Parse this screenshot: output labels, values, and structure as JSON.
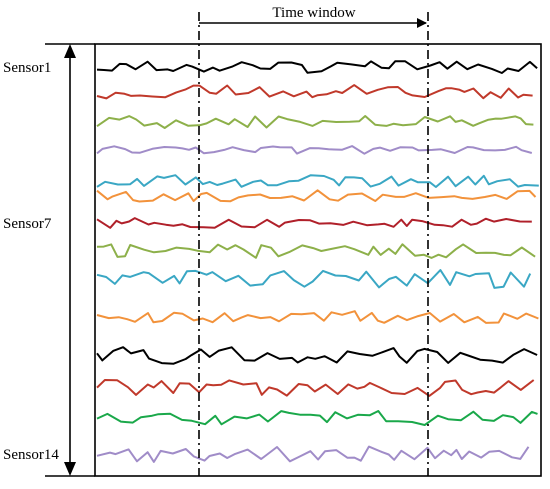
{
  "chart_data": {
    "type": "line",
    "title": "",
    "xlabel": "",
    "ylabel": "",
    "annotation": "Time window",
    "row_labels": [
      {
        "row": 1,
        "text": "Sensor1"
      },
      {
        "row": 7,
        "text": "Sensor7"
      },
      {
        "row": 14,
        "text": "Sensor14"
      }
    ],
    "series": [
      {
        "color": "#000000"
      },
      {
        "color": "#c0392b"
      },
      {
        "color": "#8db04a"
      },
      {
        "color": "#a08cc8"
      },
      {
        "color": "#3aa7c4"
      },
      {
        "color": "#f2923b"
      },
      {
        "color": "#b0202a"
      },
      {
        "color": "#8db04a"
      },
      {
        "color": "#3aa7c4"
      },
      {
        "color": "#f2923b"
      },
      {
        "color": "#000000"
      },
      {
        "color": "#c0392b"
      },
      {
        "color": "#1aa84a"
      },
      {
        "color": "#a08cc8"
      }
    ]
  }
}
